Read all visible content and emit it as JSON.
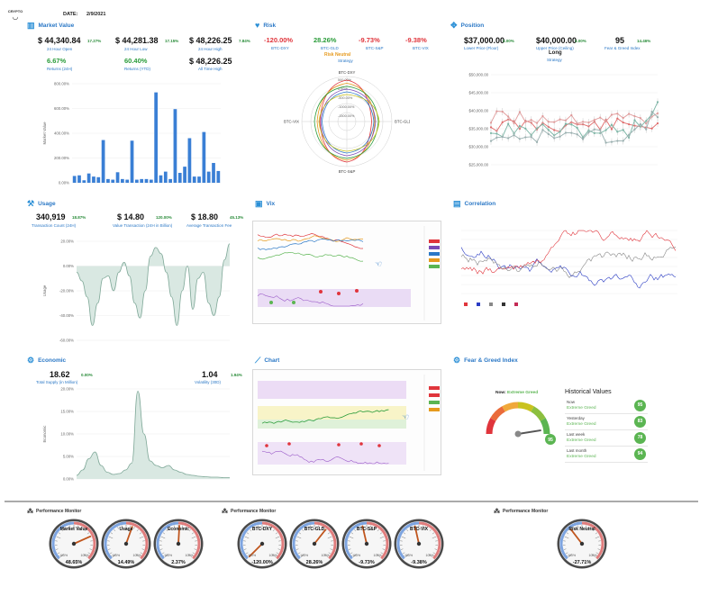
{
  "header": {
    "logo_text": "CRYPTO",
    "date_label": "DATE:",
    "date_value": "2/9/2021"
  },
  "colors": {
    "accent": "#2b78c6",
    "bar_blue": "#3a7fd5",
    "positive": "#2a9c3a",
    "negative": "#e0353c",
    "area_fill": "#d9e8e2",
    "gauge_green": "#5bb552"
  },
  "market_value": {
    "title": "Market Value",
    "stats": [
      {
        "value": "44,340.84",
        "pct": "17.27%",
        "label": "24 Hour Open"
      },
      {
        "value": "44,281.38",
        "pct": "17.15%",
        "label": "24 Hour Low"
      },
      {
        "value": "48,226.25",
        "pct": "7.84%",
        "label": "24 Hour High"
      }
    ],
    "returns": [
      {
        "value": "6.67%",
        "label": "Returns (24H)"
      },
      {
        "value": "60.40%",
        "label": "Returns (YTD)"
      },
      {
        "value": "48,226.25",
        "label": "All Time High"
      }
    ],
    "currency": "$"
  },
  "risk": {
    "title": "Risk",
    "stats": [
      {
        "value": "-120.00%",
        "label": "BTC-DXY",
        "color": "red"
      },
      {
        "value": "28.26%",
        "label": "BTC-GLD",
        "color": "green"
      },
      {
        "value": "-9.73%",
        "label": "BTC-S&P",
        "color": "red"
      },
      {
        "value": "-9.38%",
        "label": "BTC-VIX",
        "color": "red"
      }
    ],
    "rating": "Risk Neutral",
    "rating_label": "Strategy"
  },
  "position": {
    "title": "Position",
    "stats": [
      {
        "value": "$37,000.00",
        "pct": "3.00%",
        "label": "Lower Price (Floor)"
      },
      {
        "value": "$40,000.00",
        "pct": "3.00%",
        "label": "Upper Price (Ceiling)"
      },
      {
        "value": "95",
        "pct": "14.46%",
        "label": "Fear & Greed Index"
      }
    ],
    "strategy_value": "Long",
    "strategy_label": "Strategy"
  },
  "usage": {
    "title": "Usage",
    "stats": [
      {
        "value": "340,919",
        "pct": "18.87%",
        "label": "Transaction Count (24H)"
      },
      {
        "value": "14.80",
        "pct": "120.00%",
        "label": "Value Transaction (24H in Billion)"
      },
      {
        "value": "18.80",
        "pct": "45.13%",
        "label": "Average Transaction Fee"
      }
    ]
  },
  "vix": {
    "title": "Vix"
  },
  "correlation": {
    "title": "Correlation"
  },
  "economic": {
    "title": "Economic",
    "stats": [
      {
        "value": "18.62",
        "pct": "0.00%",
        "label": "Total Supply (in Million)"
      },
      {
        "value": "1.04",
        "pct": "1.94%",
        "label": "Volatility (30D)"
      }
    ]
  },
  "chart_panel": {
    "title": "Chart"
  },
  "fear_greed": {
    "title": "Fear & Greed Index",
    "now_label": "Now:",
    "now_value": "Extreme Greed",
    "gauge_value": 95,
    "gauge_badge": "95",
    "historical_title": "Historical Values",
    "rows": [
      {
        "label": "Now",
        "value": "Extreme Greed",
        "score": "95"
      },
      {
        "label": "Yesterday",
        "value": "Extreme Greed",
        "score": "83"
      },
      {
        "label": "Last week",
        "value": "Extreme Greed",
        "score": "78"
      },
      {
        "label": "Last month",
        "value": "Extreme Greed",
        "score": "94"
      }
    ]
  },
  "performance_monitor": {
    "title": "Performance Monitor",
    "gauges": [
      {
        "name": "Market Value",
        "value": "48.65%",
        "reading": 48.65
      },
      {
        "name": "Usage",
        "value": "14.49%",
        "reading": 14.49
      },
      {
        "name": "Economic",
        "value": "2.37%",
        "reading": 2.37
      },
      {
        "name": "BTC-DXY",
        "value": "-120.00%",
        "reading": -120
      },
      {
        "name": "BTC-GLD",
        "value": "28.26%",
        "reading": 28.26
      },
      {
        "name": "BTC-S&P",
        "value": "-9.73%",
        "reading": -9.73
      },
      {
        "name": "BTC-VIX",
        "value": "-9.38%",
        "reading": -9.38
      },
      {
        "name": "Risk Neutral",
        "value": "-27.71%",
        "reading": -27.71
      }
    ],
    "scale_min": "-100%",
    "scale_max": "100%"
  },
  "chart_data": [
    {
      "type": "bar",
      "title": "",
      "xlabel": "",
      "ylabel": "Market Value",
      "yticks": [
        "800.00%",
        "600.00%",
        "400.00%",
        "200.00%",
        "0.00%"
      ],
      "ylim": [
        0,
        800
      ],
      "values": [
        55,
        60,
        20,
        75,
        50,
        45,
        345,
        30,
        25,
        85,
        30,
        25,
        340,
        25,
        30,
        30,
        25,
        730,
        60,
        90,
        30,
        595,
        80,
        130,
        360,
        50,
        50,
        410,
        90,
        160,
        95
      ]
    },
    {
      "type": "radar",
      "axes": [
        "BTC-DXY",
        "BTC-GLD",
        "BTC-S&P",
        "BTC-VIX"
      ],
      "rings": [
        "500.00%",
        "0.00%",
        "-500.00%",
        "-1000.00%",
        "-1500.00%"
      ]
    },
    {
      "type": "line",
      "ylabel": "",
      "yticks": [
        "$50,000.00",
        "$45,000.00",
        "$40,000.00",
        "$35,000.00",
        "$30,000.00",
        "$25,000.00"
      ],
      "ylim": [
        25000,
        50000
      ]
    },
    {
      "type": "area",
      "ylabel": "Usage",
      "yticks": [
        "20.00%",
        "0.00%",
        "-20.00%",
        "-40.00%",
        "-60.00%"
      ],
      "ylim": [
        -60,
        20
      ]
    },
    {
      "type": "area",
      "ylabel": "Economic",
      "yticks": [
        "20.00%",
        "15.00%",
        "10.00%",
        "5.00%",
        "0.00%"
      ],
      "ylim": [
        0,
        20
      ]
    }
  ]
}
